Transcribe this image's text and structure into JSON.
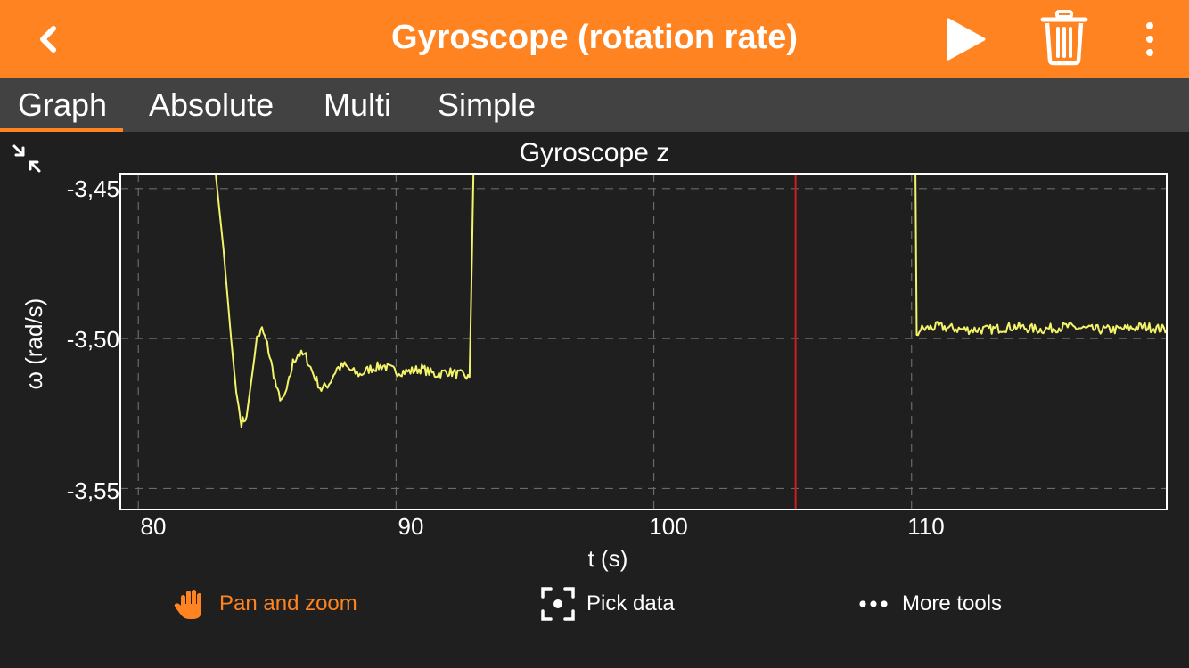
{
  "header": {
    "title": "Gyroscope (rotation rate)"
  },
  "tabs": [
    {
      "label": "Graph",
      "active": true
    },
    {
      "label": "Absolute"
    },
    {
      "label": "Multi"
    },
    {
      "label": "Simple"
    }
  ],
  "graph": {
    "title": "Gyroscope z"
  },
  "colors": {
    "accent": "#ff8421",
    "trace": "#f3f36b",
    "cursor_line": "#cc1f1f",
    "background": "#1f1f1f"
  },
  "chart_data": {
    "type": "line",
    "title": "Gyroscope z",
    "xlabel": "t (s)",
    "ylabel": "ω (rad/s)",
    "xlim": [
      79.3,
      119.9
    ],
    "ylim": [
      -3.557,
      -3.445
    ],
    "xticks": [
      80,
      90,
      100,
      110
    ],
    "xtick_labels": [
      "80",
      "90",
      "100",
      "110"
    ],
    "yticks": [
      -3.45,
      -3.5,
      -3.55
    ],
    "ytick_labels": [
      "-3,45",
      "-3,50",
      "-3,55"
    ],
    "grid": true,
    "cursor_x": 105.5,
    "series": [
      {
        "segments": [
          {
            "x": [
              83.0,
              83.3,
              83.6,
              83.8,
              84.0,
              84.2,
              84.4,
              84.6,
              84.8,
              85.0,
              85.2,
              85.4,
              85.6,
              85.8,
              86.0,
              86.2,
              86.5,
              86.8,
              87.1,
              87.4,
              87.7,
              88.0,
              88.3,
              88.6,
              89.0,
              89.5,
              90.0,
              90.5,
              91.0,
              91.5,
              92.0,
              92.5,
              92.85
            ],
            "y": [
              -3.445,
              -3.47,
              -3.5,
              -3.518,
              -3.528,
              -3.526,
              -3.513,
              -3.5,
              -3.497,
              -3.502,
              -3.51,
              -3.518,
              -3.521,
              -3.516,
              -3.508,
              -3.505,
              -3.506,
              -3.512,
              -3.517,
              -3.515,
              -3.51,
              -3.509,
              -3.511,
              -3.512,
              -3.51,
              -3.509,
              -3.511,
              -3.511,
              -3.51,
              -3.512,
              -3.511,
              -3.512,
              -3.513
            ]
          },
          {
            "x": [
              92.85,
              92.95,
              93.0
            ],
            "y": [
              -3.513,
              -3.47,
              -3.445
            ]
          },
          {
            "x": [
              110.15,
              110.2,
              110.3,
              111,
              112,
              113,
              114,
              115,
              116,
              117,
              118,
              119,
              119.9
            ],
            "y": [
              -3.445,
              -3.5,
              -3.497,
              -3.496,
              -3.497,
              -3.497,
              -3.496,
              -3.497,
              -3.496,
              -3.497,
              -3.497,
              -3.496,
              -3.497
            ]
          }
        ]
      }
    ]
  },
  "toolbar": {
    "pan_label": "Pan and zoom",
    "pick_label": "Pick data",
    "more_label": "More tools"
  }
}
